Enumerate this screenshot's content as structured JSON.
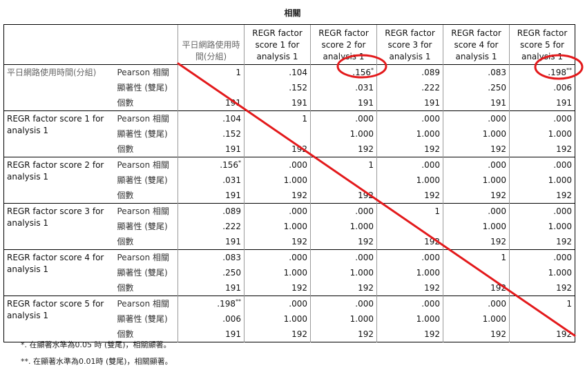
{
  "title": "相關",
  "columns": [
    "平日網路使用時間(分組)",
    "REGR factor score 1 for analysis 1",
    "REGR factor score 2 for analysis 1",
    "REGR factor score 3 for analysis 1",
    "REGR factor score 4 for analysis 1",
    "REGR factor score 5 for analysis 1"
  ],
  "stat_labels": [
    "Pearson 相關",
    "顯著性 (雙尾)",
    "個數"
  ],
  "rows": [
    {
      "label": "平日網路使用時間(分組)",
      "pearson": [
        "1",
        ".104",
        ".156*",
        ".089",
        ".083",
        ".198**"
      ],
      "sig": [
        "",
        ".152",
        ".031",
        ".222",
        ".250",
        ".006"
      ],
      "n": [
        "191",
        "191",
        "191",
        "191",
        "191",
        "191"
      ]
    },
    {
      "label": "REGR factor score 1 for analysis 1",
      "pearson": [
        ".104",
        "1",
        ".000",
        ".000",
        ".000",
        ".000"
      ],
      "sig": [
        ".152",
        "",
        "1.000",
        "1.000",
        "1.000",
        "1.000"
      ],
      "n": [
        "191",
        "192",
        "192",
        "192",
        "192",
        "192"
      ]
    },
    {
      "label": "REGR factor score 2 for analysis 1",
      "pearson": [
        ".156*",
        ".000",
        "1",
        ".000",
        ".000",
        ".000"
      ],
      "sig": [
        ".031",
        "1.000",
        "",
        "1.000",
        "1.000",
        "1.000"
      ],
      "n": [
        "191",
        "192",
        "192",
        "192",
        "192",
        "192"
      ]
    },
    {
      "label": "REGR factor score 3 for analysis 1",
      "pearson": [
        ".089",
        ".000",
        ".000",
        "1",
        ".000",
        ".000"
      ],
      "sig": [
        ".222",
        "1.000",
        "1.000",
        "",
        "1.000",
        "1.000"
      ],
      "n": [
        "191",
        "192",
        "192",
        "192",
        "192",
        "192"
      ]
    },
    {
      "label": "REGR factor score 4 for analysis 1",
      "pearson": [
        ".083",
        ".000",
        ".000",
        ".000",
        "1",
        ".000"
      ],
      "sig": [
        ".250",
        "1.000",
        "1.000",
        "1.000",
        "",
        "1.000"
      ],
      "n": [
        "191",
        "192",
        "192",
        "192",
        "192",
        "192"
      ]
    },
    {
      "label": "REGR factor score 5 for analysis 1",
      "pearson": [
        ".198**",
        ".000",
        ".000",
        ".000",
        ".000",
        "1"
      ],
      "sig": [
        ".006",
        "1.000",
        "1.000",
        "1.000",
        "1.000",
        ""
      ],
      "n": [
        "191",
        "192",
        "192",
        "192",
        "192",
        "192"
      ]
    }
  ],
  "footnotes": [
    "*. 在顯著水準為0.05 時 (雙尾)，相關顯著。",
    "**. 在顯著水準為0.01時 (雙尾)，相關顯著。"
  ],
  "annotation_color": "#e3191b"
}
